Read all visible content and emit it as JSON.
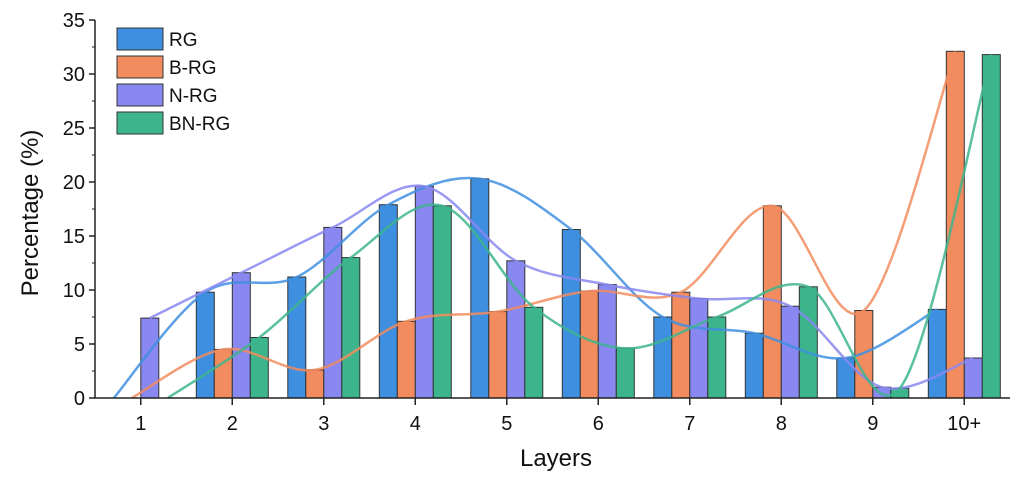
{
  "chart_data": {
    "type": "bar",
    "xlabel": "Layers",
    "ylabel": "Percentage (%)",
    "categories": [
      "1",
      "2",
      "3",
      "4",
      "5",
      "6",
      "7",
      "8",
      "9",
      "10+"
    ],
    "ylim": [
      0,
      35
    ],
    "yticks": [
      0,
      5,
      10,
      15,
      20,
      25,
      30,
      35
    ],
    "grid": false,
    "legend": "top-left",
    "fit_curves": true,
    "series": [
      {
        "name": "RG",
        "color": "#3f8fe0",
        "values": [
          0,
          9.8,
          11.2,
          17.9,
          20.3,
          15.6,
          7.5,
          6.0,
          3.7,
          8.2
        ]
      },
      {
        "name": "B-RG",
        "color": "#f28c5e",
        "values": [
          0,
          4.5,
          2.6,
          7.1,
          8.0,
          9.9,
          9.8,
          17.8,
          8.1,
          32.1
        ]
      },
      {
        "name": "N-RG",
        "color": "#8888f0",
        "values": [
          7.4,
          11.6,
          15.8,
          19.6,
          12.7,
          10.5,
          9.2,
          8.5,
          1.0,
          3.7
        ]
      },
      {
        "name": "BN-RG",
        "color": "#3db58c",
        "values": [
          0,
          5.6,
          13.0,
          17.8,
          8.4,
          4.6,
          7.5,
          10.3,
          0.9,
          31.8
        ]
      }
    ]
  }
}
